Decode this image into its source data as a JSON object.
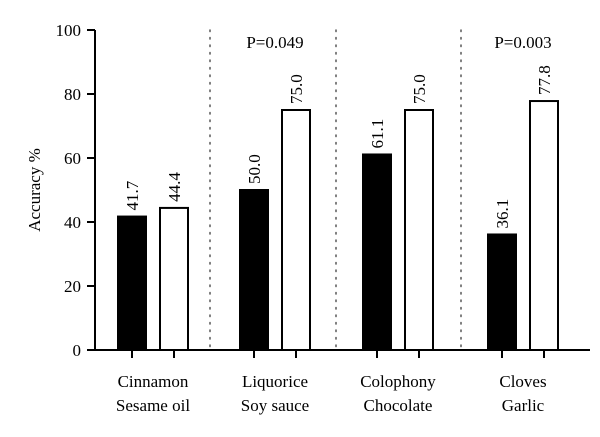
{
  "chart_data": {
    "type": "bar",
    "ylabel": "Accuracy %",
    "ylim": [
      0,
      100
    ],
    "yticks": [
      0,
      20,
      40,
      60,
      80,
      100
    ],
    "grid": false,
    "groups": [
      {
        "label_lines": [
          "Cinnamon",
          "Sesame oil"
        ],
        "values": [
          41.7,
          44.4
        ],
        "value_labels": [
          "41.7",
          "44.4"
        ],
        "annotation": ""
      },
      {
        "label_lines": [
          "Liquorice",
          "Soy sauce"
        ],
        "values": [
          50.0,
          75.0
        ],
        "value_labels": [
          "50.0",
          "75.0"
        ],
        "annotation": "P=0.049"
      },
      {
        "label_lines": [
          "Colophony",
          "Chocolate"
        ],
        "values": [
          61.1,
          75.0
        ],
        "value_labels": [
          "61.1",
          "75.0"
        ],
        "annotation": ""
      },
      {
        "label_lines": [
          "Cloves",
          "Garlic"
        ],
        "values": [
          36.1,
          77.8
        ],
        "value_labels": [
          "36.1",
          "77.8"
        ],
        "annotation": "P=0.003"
      }
    ],
    "bar_styles": [
      {
        "fill": "#000000",
        "stroke": "#000000"
      },
      {
        "fill": "#ffffff",
        "stroke": "#000000"
      }
    ],
    "separators": "dotted vertical lines between groups"
  }
}
